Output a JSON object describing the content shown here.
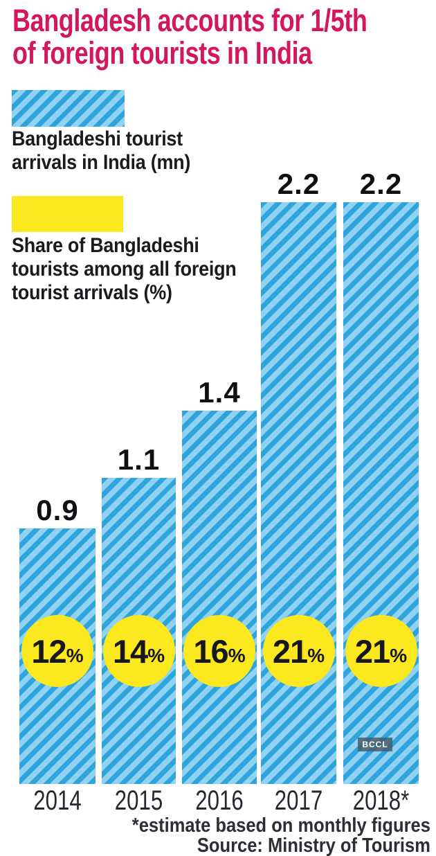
{
  "title": {
    "lines": [
      "Bangladesh accounts for 1/5th",
      "of foreign tourists in India"
    ]
  },
  "legend": {
    "items": [
      {
        "swatch": "blue-diagonal-stripes",
        "lines": [
          "Bangladeshi tourist",
          "arrivals in India (mn)"
        ]
      },
      {
        "swatch": "yellow-solid",
        "lines": [
          "Share of Bangladeshi",
          "tourists among all foreign",
          "tourist arrivals (%)"
        ]
      }
    ]
  },
  "chart_data": {
    "type": "bar",
    "categories": [
      "2014",
      "2015",
      "2016",
      "2017",
      "2018*"
    ],
    "series": [
      {
        "name": "Bangladeshi tourist arrivals in India (mn)",
        "values": [
          0.9,
          1.1,
          1.4,
          2.2,
          2.2
        ],
        "data_labels": [
          "0.9",
          "1.1",
          "1.4",
          "2.2",
          "2.2"
        ],
        "style": "blue bar with diagonal stripes, value label above bar"
      },
      {
        "name": "Share of Bangladeshi tourists among all foreign tourist arrivals (%)",
        "values": [
          12,
          14,
          16,
          21,
          21
        ],
        "data_labels": [
          "12%",
          "14%",
          "16%",
          "21%",
          "21%"
        ],
        "style": "yellow circle badge overlaid on bar"
      }
    ],
    "ylim": [
      0,
      2.2
    ],
    "grid": false,
    "axes_shown": false,
    "legend_position": "top-left"
  },
  "percent_sign": "%",
  "watermark": {
    "label": "BCCL"
  },
  "footer": {
    "note": "*estimate based on monthly figures",
    "source": "Source: Ministry of Tourism"
  },
  "colors": {
    "title_color": "#d3165e",
    "bar_light": "#8fd2f1",
    "bar_dark": "#2ea3dc",
    "accent_yellow": "#fbe81f",
    "text_dark": "#1b1b1f",
    "footer_color": "#2d2d36"
  }
}
